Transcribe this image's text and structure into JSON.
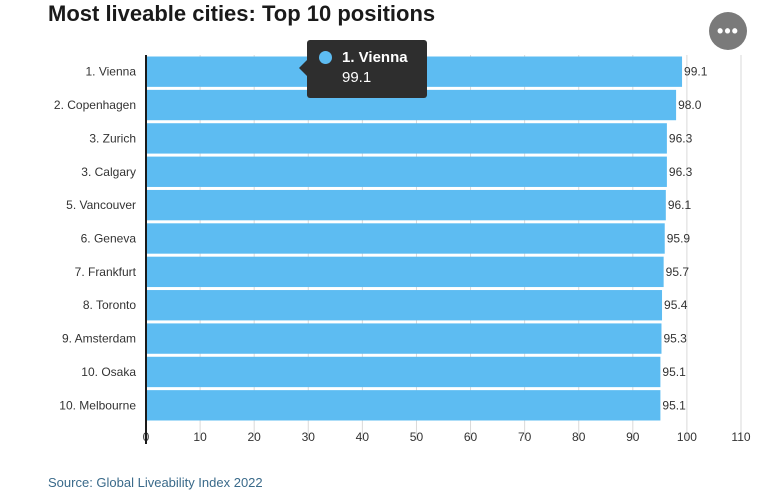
{
  "header": {
    "title": "Most liveable cities: Top 10 positions",
    "menu_label": "•••"
  },
  "tooltip": {
    "label": "1. Vienna",
    "value": "99.1"
  },
  "footer": {
    "source": "Source: Global Liveability Index 2022"
  },
  "colors": {
    "bar": "#5dbcf2",
    "tooltip_bg": "#2e2e2e",
    "grid": "#d9d9d9",
    "axis": "#1a1a1a"
  },
  "chart_data": {
    "type": "bar",
    "orientation": "horizontal",
    "title": "Most liveable cities: Top 10 positions",
    "categories": [
      "1. Vienna",
      "2. Copenhagen",
      "3. Zurich",
      "3. Calgary",
      "5. Vancouver",
      "6. Geneva",
      "7. Frankfurt",
      "8. Toronto",
      "9. Amsterdam",
      "10. Osaka",
      "10. Melbourne"
    ],
    "values": [
      99.1,
      98.0,
      96.3,
      96.3,
      96.1,
      95.9,
      95.7,
      95.4,
      95.3,
      95.1,
      95.1
    ],
    "value_labels": [
      "99.1",
      "98.0",
      "96.3",
      "96.3",
      "96.1",
      "95.9",
      "95.7",
      "95.4",
      "95.3",
      "95.1",
      "95.1"
    ],
    "xlim": [
      0,
      110
    ],
    "x_ticks": [
      0,
      10,
      20,
      30,
      40,
      50,
      60,
      70,
      80,
      90,
      100,
      110
    ],
    "grid": true,
    "legend": "none"
  }
}
